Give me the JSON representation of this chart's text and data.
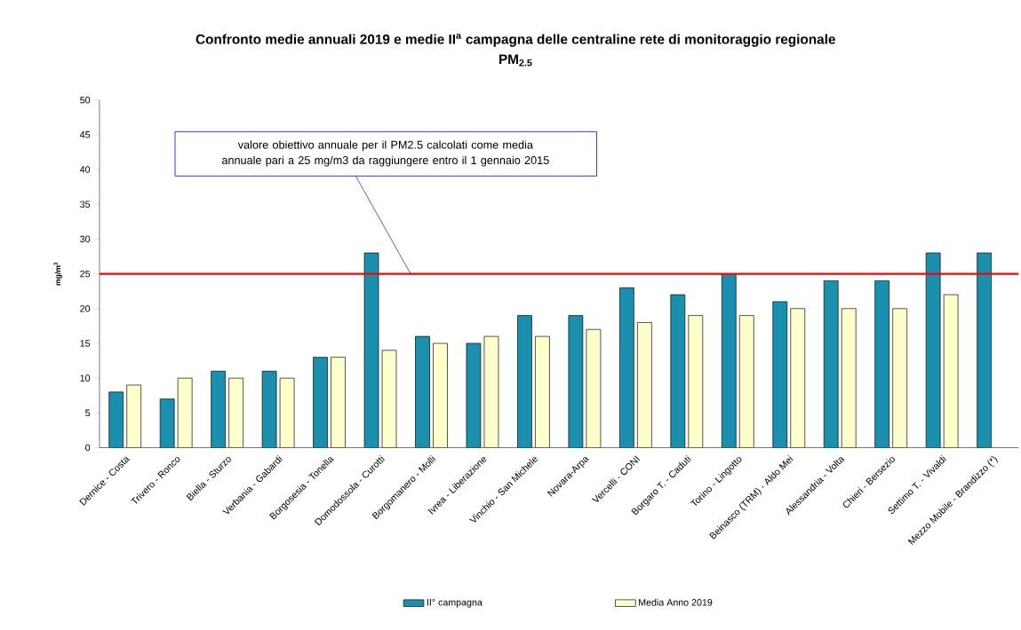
{
  "chart_data": {
    "type": "bar",
    "title": "Confronto medie annuali 2019 e medie II$^{a}$ campagna delle centraline rete di monitoraggio regionale",
    "subtitle": "PM$_{2.5}$",
    "ylabel": "mg/m$^{3}$",
    "categories": [
      "Dernice - Costa",
      "Trivero - Ronco",
      "Biella - Sturzo",
      "Verbania - Gabardi",
      "Borgosesia - Tonella",
      "Domodossola - Curotti",
      "Borgomanero - Molli",
      "Ivrea - Liberazione",
      "Vinchio - San Michele",
      "Novara-Arpa",
      "Vercelli - CONI",
      "Borgaro T. - Caduti",
      "Torino - Lingotto",
      "Beinasco (TRM) - Aldo Mei",
      "Alessandria - Volta",
      "Chieri - Bersezio",
      "Settimo T. - Vivaldi",
      "Mezzo Mobile - Brandizzo (*)"
    ],
    "series": [
      {
        "name": "II° campagna",
        "color": "#1a8fae",
        "values": [
          8,
          7,
          11,
          11,
          13,
          28,
          16,
          15,
          19,
          19,
          23,
          22,
          25,
          21,
          24,
          24,
          28,
          28
        ]
      },
      {
        "name": "Media Anno 2019",
        "color": "#ffffcc",
        "values": [
          9,
          10,
          10,
          10,
          13,
          14,
          15,
          16,
          16,
          17,
          18,
          19,
          19,
          20,
          20,
          20,
          22,
          null
        ]
      }
    ],
    "ylim": [
      0,
      50
    ],
    "yticks": [
      0,
      5,
      10,
      15,
      20,
      25,
      30,
      35,
      40,
      45,
      50
    ],
    "ref_lines": [
      {
        "axis": "y",
        "value": 25,
        "color": "#ff0000",
        "label": "valore obiettivo annuale per il PM2.5  calcolati come media annuale pari a 25 mg/m3 da raggiungere entro il 1 gennaio 2015"
      }
    ],
    "legend": "bottom",
    "grid": false
  }
}
